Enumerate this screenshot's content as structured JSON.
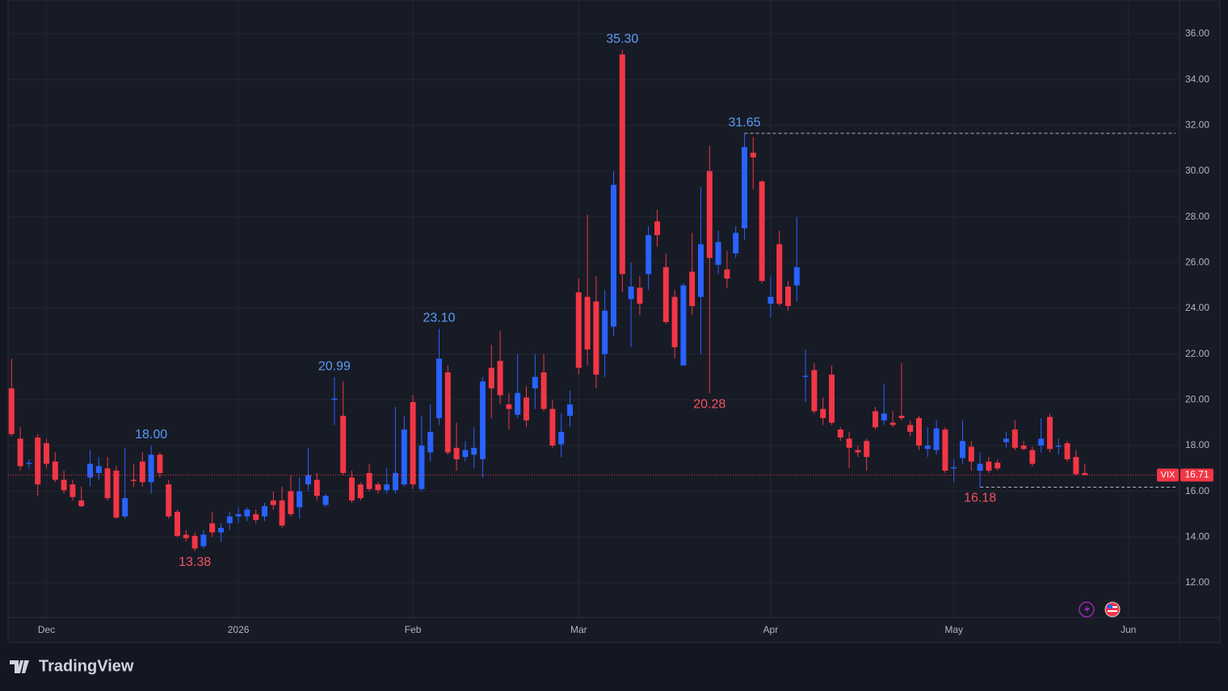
{
  "chart_data": {
    "type": "candlestick",
    "series": [
      {
        "name": "VIX",
        "color_up": "#2962ff",
        "color_down": "#f23645",
        "open": [
          20.5,
          18.3,
          17.2,
          18.35,
          18.1,
          17.3,
          16.5,
          16.3,
          15.6,
          16.6,
          16.8,
          17.0,
          16.9,
          14.9,
          16.5,
          17.3,
          16.4,
          17.6,
          16.3,
          15.1,
          14.1,
          14.05,
          13.6,
          14.6,
          14.2,
          14.6,
          14.9,
          14.9,
          15.0,
          14.9,
          15.6,
          15.6,
          16.0,
          15.3,
          16.3,
          16.5,
          15.4,
          20.0,
          19.3,
          16.6,
          16.3,
          16.8,
          16.3,
          16.05,
          16.05,
          16.3,
          19.9,
          16.1,
          17.7,
          19.2,
          21.2,
          17.9,
          17.5,
          17.6,
          17.4,
          21.4,
          21.7,
          19.8,
          19.35,
          20.1,
          20.5,
          21.2,
          19.6,
          18.05,
          19.3,
          24.7,
          24.5,
          24.3,
          22.0,
          23.2,
          35.1,
          24.4,
          24.9,
          25.5,
          27.8,
          25.8,
          24.5,
          21.5,
          25.6,
          24.5,
          30.0,
          25.9,
          25.7,
          26.4,
          27.5,
          30.8,
          29.55,
          24.2,
          26.8,
          24.95,
          25.0,
          21.0,
          21.3,
          19.6,
          21.1,
          18.7,
          18.3,
          17.8,
          18.2,
          19.5,
          19.1,
          19.0,
          19.3,
          18.9,
          19.2,
          17.85,
          17.8,
          18.7,
          17.0,
          17.45,
          17.95,
          16.9,
          17.3,
          17.25,
          18.15,
          18.7,
          18.0,
          17.8,
          18.0,
          19.25,
          17.95,
          18.1,
          17.5,
          16.8
        ],
        "high": [
          21.8,
          18.8,
          17.4,
          18.5,
          18.3,
          17.7,
          16.9,
          16.5,
          16.2,
          17.8,
          17.5,
          17.5,
          17.1,
          17.9,
          17.2,
          17.7,
          18.0,
          17.7,
          16.5,
          15.2,
          14.3,
          14.2,
          14.3,
          15.1,
          14.6,
          15.1,
          15.3,
          15.3,
          15.2,
          15.5,
          16.0,
          16.2,
          16.7,
          16.6,
          17.9,
          16.8,
          15.9,
          20.99,
          20.8,
          16.9,
          16.4,
          17.2,
          16.4,
          17.0,
          19.7,
          19.3,
          20.2,
          19.3,
          19.8,
          23.1,
          21.5,
          19.0,
          18.2,
          18.8,
          21.0,
          22.4,
          23.0,
          20.3,
          22.0,
          20.6,
          22.0,
          22.0,
          20.0,
          19.4,
          20.4,
          25.3,
          28.1,
          25.4,
          24.8,
          30.0,
          35.3,
          26.0,
          25.4,
          27.6,
          28.3,
          26.4,
          24.8,
          25.1,
          27.3,
          29.3,
          31.1,
          27.4,
          26.5,
          27.6,
          31.65,
          31.5,
          29.6,
          25.4,
          27.4,
          25.2,
          28.0,
          22.2,
          21.6,
          20.1,
          21.5,
          18.8,
          18.6,
          18.0,
          18.3,
          19.7,
          20.7,
          19.5,
          21.6,
          19.1,
          19.3,
          18.8,
          19.1,
          18.8,
          17.4,
          19.1,
          18.2,
          17.7,
          17.5,
          17.4,
          18.6,
          19.1,
          18.2,
          17.95,
          19.2,
          19.4,
          18.3,
          18.2,
          17.8,
          17.2
        ],
        "low": [
          18.4,
          16.9,
          17.0,
          15.8,
          17.0,
          16.4,
          15.9,
          15.6,
          15.3,
          16.2,
          16.5,
          15.6,
          14.8,
          14.8,
          16.2,
          16.2,
          15.9,
          16.6,
          14.8,
          14.0,
          13.8,
          13.38,
          13.5,
          14.0,
          13.8,
          14.3,
          14.6,
          14.7,
          14.6,
          14.7,
          15.2,
          14.4,
          14.9,
          14.8,
          16.0,
          15.6,
          15.3,
          18.9,
          16.7,
          15.5,
          15.6,
          16.0,
          15.9,
          15.9,
          15.9,
          16.2,
          16.1,
          16.0,
          17.3,
          18.9,
          17.6,
          16.9,
          17.3,
          17.0,
          16.6,
          19.2,
          19.8,
          18.7,
          19.2,
          18.8,
          19.6,
          19.5,
          17.9,
          17.5,
          18.8,
          21.1,
          21.5,
          20.5,
          21.0,
          22.8,
          24.7,
          22.3,
          23.7,
          24.8,
          26.7,
          23.3,
          21.8,
          21.5,
          23.7,
          22.0,
          20.28,
          25.5,
          24.9,
          26.2,
          27.0,
          29.2,
          25.1,
          23.6,
          24.1,
          23.9,
          24.3,
          19.9,
          19.4,
          18.9,
          18.9,
          18.2,
          17.0,
          17.5,
          16.9,
          18.7,
          18.9,
          18.8,
          19.1,
          18.4,
          17.8,
          17.5,
          17.6,
          16.8,
          16.4,
          17.2,
          16.9,
          16.18,
          16.8,
          16.9,
          17.9,
          17.8,
          17.8,
          17.1,
          17.7,
          17.7,
          17.6,
          17.3,
          16.7,
          16.7
        ],
        "close": [
          18.5,
          17.1,
          17.25,
          16.3,
          17.2,
          16.5,
          16.05,
          15.75,
          15.35,
          17.2,
          17.1,
          15.7,
          14.85,
          15.7,
          16.45,
          16.4,
          17.6,
          16.8,
          14.9,
          14.05,
          13.95,
          13.5,
          14.1,
          14.2,
          14.4,
          14.9,
          15.0,
          15.2,
          14.75,
          15.35,
          15.4,
          14.5,
          15.0,
          16.0,
          16.7,
          15.8,
          15.8,
          20.05,
          16.8,
          15.6,
          15.7,
          16.1,
          16.05,
          16.3,
          16.8,
          18.7,
          16.3,
          18.0,
          18.6,
          21.8,
          17.7,
          17.4,
          17.8,
          17.9,
          20.8,
          20.5,
          20.2,
          19.6,
          20.3,
          19.1,
          21.0,
          19.6,
          18.0,
          18.6,
          19.8,
          21.4,
          22.2,
          21.1,
          23.9,
          29.4,
          25.5,
          24.95,
          24.2,
          27.2,
          27.2,
          23.4,
          22.3,
          25.0,
          24.1,
          26.8,
          26.2,
          26.9,
          25.3,
          27.3,
          31.05,
          30.6,
          25.2,
          24.5,
          24.2,
          24.1,
          25.8,
          21.05,
          19.5,
          19.2,
          19.0,
          18.35,
          17.9,
          17.7,
          17.5,
          18.8,
          19.4,
          18.9,
          19.2,
          18.6,
          18.0,
          18.0,
          18.75,
          16.9,
          17.05,
          18.2,
          17.3,
          17.2,
          16.9,
          17.0,
          18.3,
          17.9,
          17.85,
          17.2,
          18.3,
          17.85,
          18.0,
          17.4,
          16.75,
          16.71
        ]
      }
    ],
    "annotations": [
      {
        "value": 18.0,
        "label": "18.00"
      },
      {
        "value": 13.38,
        "label": "13.38"
      },
      {
        "value": 20.99,
        "label": "20.99"
      },
      {
        "value": 23.1,
        "label": "23.10"
      },
      {
        "value": 35.3,
        "label": "35.30"
      },
      {
        "value": 20.28,
        "label": "20.28"
      },
      {
        "value": 31.65,
        "label": "31.65",
        "line": true
      },
      {
        "value": 16.18,
        "label": "16.18",
        "line": true
      }
    ],
    "last_price": {
      "value": 16.71
    },
    "xlim": [
      -0.4,
      133.4
    ],
    "xticks": [
      {
        "value": 4,
        "label": "Dec"
      },
      {
        "value": 26,
        "label": "2026"
      },
      {
        "value": 46,
        "label": "Feb"
      },
      {
        "value": 65,
        "label": "Mar"
      },
      {
        "value": 87,
        "label": "Apr"
      },
      {
        "value": 108,
        "label": "May"
      },
      {
        "value": 128,
        "label": "Jun"
      }
    ],
    "ylim": [
      10.48,
      37.48
    ],
    "yticks": [
      {
        "value": 12,
        "label": "12.00"
      },
      {
        "value": 14,
        "label": "14.00"
      },
      {
        "value": 16,
        "label": "16.00"
      },
      {
        "value": 18,
        "label": "18.00"
      },
      {
        "value": 20,
        "label": "20.00"
      },
      {
        "value": 22,
        "label": "22.00"
      },
      {
        "value": 24,
        "label": "24.00"
      },
      {
        "value": 26,
        "label": "26.00"
      },
      {
        "value": 28,
        "label": "28.00"
      },
      {
        "value": 30,
        "label": "30.00"
      },
      {
        "value": 32,
        "label": "32.00"
      },
      {
        "value": 34,
        "label": "34.00"
      },
      {
        "value": 36,
        "label": "36.00"
      }
    ],
    "grid": true
  },
  "footer": {
    "brand": "TradingView"
  }
}
